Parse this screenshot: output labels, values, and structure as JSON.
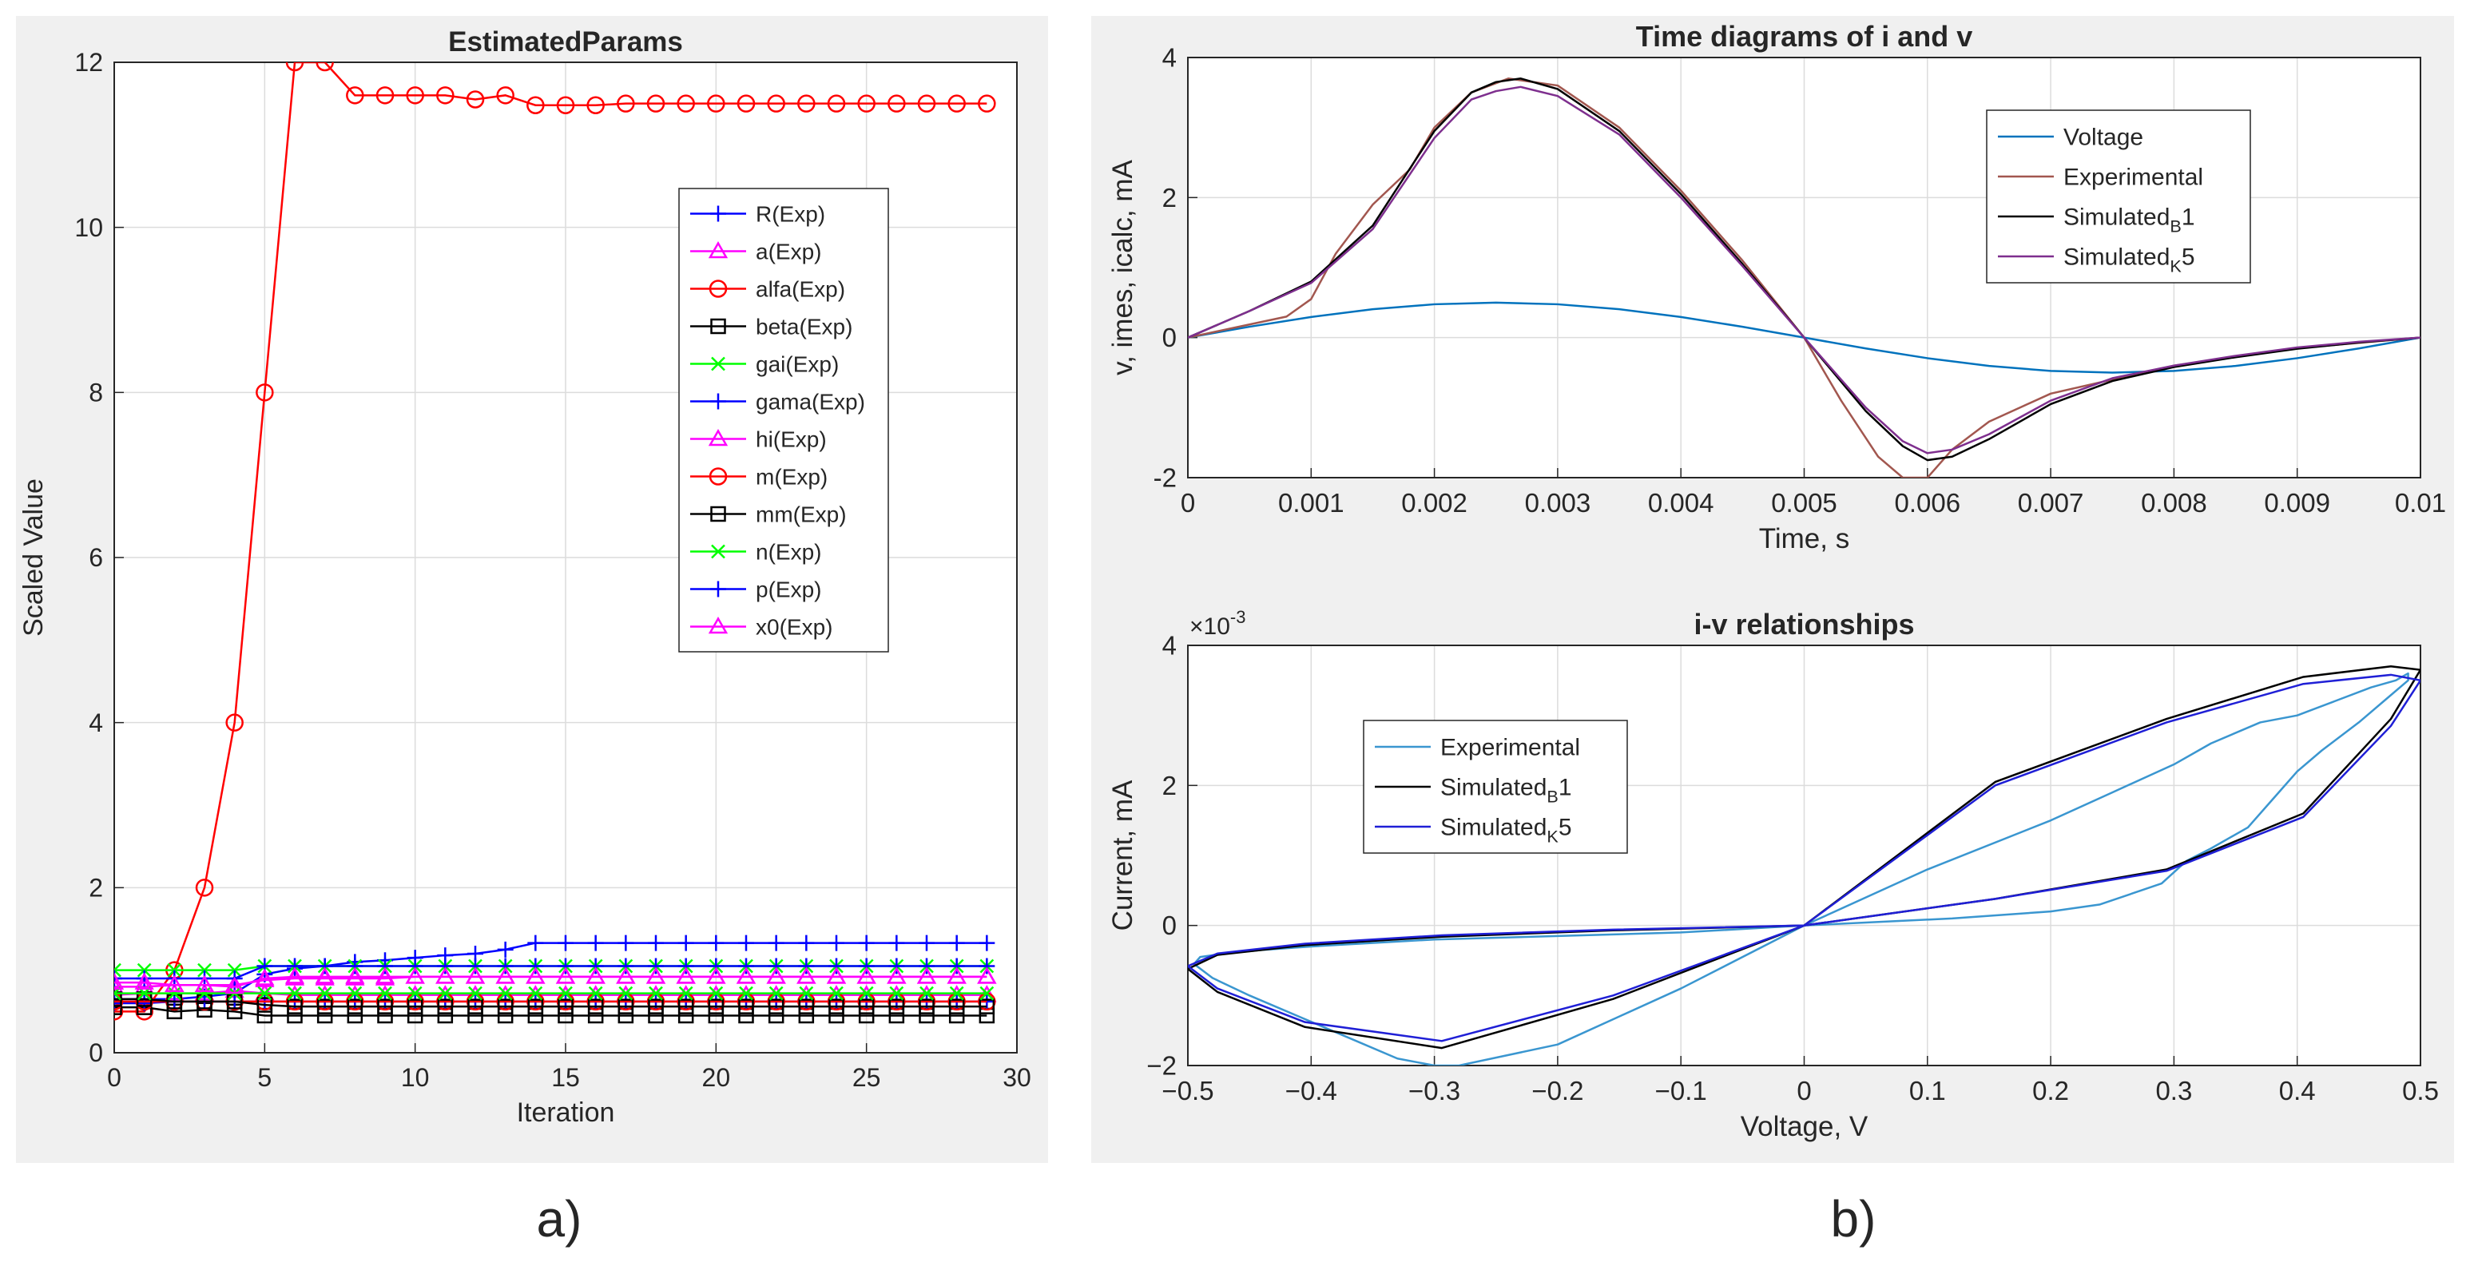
{
  "panel_labels": {
    "a": "a)",
    "b": "b)"
  },
  "chart_data": [
    {
      "id": "estimated-params",
      "type": "line",
      "title": "EstimatedParams",
      "xlabel": "Iteration",
      "ylabel": "Scaled Value",
      "xlim": [
        0,
        30
      ],
      "ylim": [
        0,
        12
      ],
      "xticks": [
        0,
        5,
        10,
        15,
        20,
        25,
        30
      ],
      "yticks": [
        0,
        2,
        4,
        6,
        8,
        10,
        12
      ],
      "grid": true,
      "legend_position": "upper-right",
      "x": [
        0,
        1,
        2,
        3,
        4,
        5,
        6,
        7,
        8,
        9,
        10,
        11,
        12,
        13,
        14,
        15,
        16,
        17,
        18,
        19,
        20,
        21,
        22,
        23,
        24,
        25,
        26,
        27,
        28,
        29
      ],
      "series": [
        {
          "name": "R(Exp)",
          "color": "#0000ff",
          "marker": "plus",
          "values": [
            0.65,
            0.65,
            0.65,
            0.68,
            0.72,
            0.95,
            1.02,
            1.05,
            1.1,
            1.12,
            1.15,
            1.18,
            1.2,
            1.25,
            1.33,
            1.33,
            1.33,
            1.33,
            1.33,
            1.33,
            1.33,
            1.33,
            1.33,
            1.33,
            1.33,
            1.33,
            1.33,
            1.33,
            1.33,
            1.33
          ]
        },
        {
          "name": "a(Exp)",
          "color": "#ff00ff",
          "marker": "triangle",
          "values": [
            0.7,
            0.72,
            0.72,
            0.72,
            0.75,
            0.72,
            0.7,
            0.7,
            0.7,
            0.7,
            0.7,
            0.7,
            0.7,
            0.7,
            0.7,
            0.7,
            0.7,
            0.7,
            0.7,
            0.7,
            0.7,
            0.7,
            0.7,
            0.7,
            0.7,
            0.7,
            0.7,
            0.7,
            0.7,
            0.7
          ]
        },
        {
          "name": "alfa(Exp)",
          "color": "#ff0000",
          "marker": "circle",
          "values": [
            0.5,
            0.5,
            1,
            2,
            4,
            8,
            12,
            12,
            11.6,
            11.6,
            11.6,
            11.6,
            11.55,
            11.6,
            11.48,
            11.48,
            11.48,
            11.5,
            11.5,
            11.5,
            11.5,
            11.5,
            11.5,
            11.5,
            11.5,
            11.5,
            11.5,
            11.5,
            11.5,
            11.5
          ]
        },
        {
          "name": "beta(Exp)",
          "color": "#000000",
          "marker": "square",
          "values": [
            0.55,
            0.55,
            0.5,
            0.52,
            0.5,
            0.45,
            0.45,
            0.45,
            0.45,
            0.45,
            0.45,
            0.45,
            0.45,
            0.45,
            0.45,
            0.45,
            0.45,
            0.45,
            0.45,
            0.45,
            0.45,
            0.45,
            0.45,
            0.45,
            0.45,
            0.45,
            0.45,
            0.45,
            0.45,
            0.45
          ]
        },
        {
          "name": "gai(Exp)",
          "color": "#00ff00",
          "marker": "x",
          "values": [
            1,
            1,
            1,
            1,
            1,
            1.05,
            1.05,
            1.05,
            1.05,
            1.05,
            1.05,
            1.05,
            1.05,
            1.05,
            1.05,
            1.05,
            1.05,
            1.05,
            1.05,
            1.05,
            1.05,
            1.05,
            1.05,
            1.05,
            1.05,
            1.05,
            1.05,
            1.05,
            1.05,
            1.05
          ]
        },
        {
          "name": "gama(Exp)",
          "color": "#0000ff",
          "marker": "plus",
          "values": [
            0.6,
            0.6,
            0.62,
            0.62,
            0.62,
            0.62,
            0.62,
            0.62,
            0.62,
            0.62,
            0.62,
            0.62,
            0.62,
            0.62,
            0.62,
            0.62,
            0.62,
            0.62,
            0.62,
            0.62,
            0.62,
            0.62,
            0.62,
            0.62,
            0.62,
            0.62,
            0.62,
            0.62,
            0.62,
            0.62
          ]
        },
        {
          "name": "hi(Exp)",
          "color": "#ff00ff",
          "marker": "triangle",
          "values": [
            0.8,
            0.8,
            0.82,
            0.82,
            0.82,
            0.88,
            0.9,
            0.9,
            0.9,
            0.9,
            0.92,
            0.92,
            0.92,
            0.92,
            0.92,
            0.92,
            0.92,
            0.92,
            0.92,
            0.92,
            0.92,
            0.92,
            0.92,
            0.92,
            0.92,
            0.92,
            0.92,
            0.92,
            0.92,
            0.92
          ]
        },
        {
          "name": "m(Exp)",
          "color": "#ff0000",
          "marker": "circle",
          "values": [
            0.62,
            0.62,
            0.62,
            0.62,
            0.62,
            0.62,
            0.62,
            0.62,
            0.62,
            0.62,
            0.62,
            0.62,
            0.62,
            0.62,
            0.62,
            0.62,
            0.62,
            0.62,
            0.62,
            0.62,
            0.62,
            0.62,
            0.62,
            0.62,
            0.62,
            0.62,
            0.62,
            0.62,
            0.62,
            0.62
          ]
        },
        {
          "name": "mm(Exp)",
          "color": "#000000",
          "marker": "square",
          "values": [
            0.65,
            0.65,
            0.62,
            0.62,
            0.62,
            0.58,
            0.56,
            0.56,
            0.56,
            0.56,
            0.56,
            0.56,
            0.56,
            0.56,
            0.56,
            0.56,
            0.56,
            0.56,
            0.56,
            0.56,
            0.56,
            0.56,
            0.56,
            0.56,
            0.56,
            0.56,
            0.56,
            0.56,
            0.56,
            0.56
          ]
        },
        {
          "name": "n(Exp)",
          "color": "#00ff00",
          "marker": "x",
          "values": [
            0.72,
            0.72,
            0.72,
            0.72,
            0.72,
            0.72,
            0.72,
            0.72,
            0.72,
            0.72,
            0.72,
            0.72,
            0.72,
            0.72,
            0.72,
            0.72,
            0.72,
            0.72,
            0.72,
            0.72,
            0.72,
            0.72,
            0.72,
            0.72,
            0.72,
            0.72,
            0.72,
            0.72,
            0.72,
            0.72
          ]
        },
        {
          "name": "p(Exp)",
          "color": "#0000ff",
          "marker": "plus",
          "values": [
            0.9,
            0.9,
            0.9,
            0.9,
            0.9,
            1.05,
            1.05,
            1.05,
            1.05,
            1.05,
            1.05,
            1.05,
            1.05,
            1.05,
            1.05,
            1.05,
            1.05,
            1.05,
            1.05,
            1.05,
            1.05,
            1.05,
            1.05,
            1.05,
            1.05,
            1.05,
            1.05,
            1.05,
            1.05,
            1.05
          ]
        },
        {
          "name": "x0(Exp)",
          "color": "#ff00ff",
          "marker": "triangle",
          "values": [
            0.85,
            0.85,
            0.82,
            0.82,
            0.8,
            0.9,
            0.92,
            0.92,
            0.92,
            0.92,
            0.92,
            0.92,
            0.92,
            0.92,
            0.92,
            0.92,
            0.92,
            0.92,
            0.92,
            0.92,
            0.92,
            0.92,
            0.92,
            0.92,
            0.92,
            0.92,
            0.92,
            0.92,
            0.92,
            0.92
          ]
        }
      ]
    },
    {
      "id": "time-diagrams",
      "type": "line",
      "title": "Time diagrams of i and v",
      "xlabel": "Time, s",
      "ylabel": "v, imes, icalc, mA",
      "xlim": [
        0,
        0.01
      ],
      "ylim": [
        -2,
        4
      ],
      "xticks": [
        0,
        0.001,
        0.002,
        0.003,
        0.004,
        0.005,
        0.006,
        0.007,
        0.008,
        0.009,
        0.01
      ],
      "xtick_labels": [
        "0",
        "0.001",
        "0.002",
        "0.003",
        "0.004",
        "0.005",
        "0.006",
        "0.007",
        "0.008",
        "0.009",
        "0.01"
      ],
      "yticks": [
        -2,
        0,
        2,
        4
      ],
      "grid": true,
      "legend_position": "upper-right",
      "series": [
        {
          "name": "Voltage",
          "legend_text": "Voltage",
          "color": "#0072bd",
          "x": [
            0,
            0.0005,
            0.001,
            0.0015,
            0.002,
            0.0025,
            0.003,
            0.0035,
            0.004,
            0.0045,
            0.005,
            0.0055,
            0.006,
            0.0065,
            0.007,
            0.0075,
            0.008,
            0.0085,
            0.009,
            0.0095,
            0.01
          ],
          "y": [
            0,
            0.155,
            0.294,
            0.405,
            0.476,
            0.5,
            0.476,
            0.405,
            0.294,
            0.155,
            0,
            -0.155,
            -0.294,
            -0.405,
            -0.476,
            -0.5,
            -0.476,
            -0.405,
            -0.294,
            -0.155,
            0
          ]
        },
        {
          "name": "Experimental",
          "legend_text": "Experimental",
          "color": "#a2574f",
          "x": [
            0,
            0.0004,
            0.0008,
            0.001,
            0.0012,
            0.0015,
            0.0018,
            0.002,
            0.0023,
            0.0026,
            0.003,
            0.0035,
            0.004,
            0.0045,
            0.005,
            0.0053,
            0.0056,
            0.0058,
            0.006,
            0.0062,
            0.0065,
            0.007,
            0.0075,
            0.008,
            0.009,
            0.01
          ],
          "y": [
            0,
            0.15,
            0.3,
            0.55,
            1.2,
            1.9,
            2.4,
            3.0,
            3.5,
            3.7,
            3.6,
            3.0,
            2.1,
            1.1,
            0,
            -0.9,
            -1.7,
            -2.0,
            -2.0,
            -1.6,
            -1.2,
            -0.8,
            -0.6,
            -0.4,
            -0.15,
            0
          ]
        },
        {
          "name": "Simulated_B1",
          "legend_text": "Simulated",
          "legend_sub": "B",
          "legend_suffix": "1",
          "color": "#000000",
          "x": [
            0,
            0.0005,
            0.001,
            0.0015,
            0.002,
            0.0023,
            0.0025,
            0.0027,
            0.003,
            0.0035,
            0.004,
            0.0045,
            0.005,
            0.0055,
            0.0058,
            0.006,
            0.0062,
            0.0065,
            0.007,
            0.0075,
            0.008,
            0.0085,
            0.009,
            0.0095,
            0.01
          ],
          "y": [
            0,
            0.38,
            0.8,
            1.6,
            2.95,
            3.5,
            3.65,
            3.7,
            3.55,
            2.95,
            2.05,
            1.05,
            0,
            -1.05,
            -1.55,
            -1.75,
            -1.7,
            -1.45,
            -0.95,
            -0.62,
            -0.42,
            -0.28,
            -0.16,
            -0.07,
            0
          ]
        },
        {
          "name": "Simulated_K5",
          "legend_text": "Simulated",
          "legend_sub": "K",
          "legend_suffix": "5",
          "color": "#7e2f8e",
          "x": [
            0,
            0.0005,
            0.001,
            0.0015,
            0.002,
            0.0023,
            0.0025,
            0.0027,
            0.003,
            0.0035,
            0.004,
            0.0045,
            0.005,
            0.0055,
            0.0058,
            0.006,
            0.0062,
            0.0065,
            0.007,
            0.0075,
            0.008,
            0.0085,
            0.009,
            0.0095,
            0.01
          ],
          "y": [
            0,
            0.38,
            0.78,
            1.55,
            2.85,
            3.4,
            3.52,
            3.58,
            3.45,
            2.9,
            2.0,
            1.02,
            0,
            -1.0,
            -1.48,
            -1.65,
            -1.6,
            -1.38,
            -0.9,
            -0.58,
            -0.4,
            -0.26,
            -0.14,
            -0.06,
            0
          ]
        }
      ]
    },
    {
      "id": "iv-relationships",
      "type": "line",
      "title": "i-v relationships",
      "xlabel": "Voltage, V",
      "ylabel": "Current, mA",
      "y_exponent_label": "×10",
      "y_exponent_power": "-3",
      "xlim": [
        -0.5,
        0.5
      ],
      "ylim": [
        -0.002,
        0.004
      ],
      "xticks": [
        -0.5,
        -0.4,
        -0.3,
        -0.2,
        -0.1,
        0,
        0.1,
        0.2,
        0.3,
        0.4,
        0.5
      ],
      "xtick_labels": [
        "−0.5",
        "−0.4",
        "−0.3",
        "−0.2",
        "−0.1",
        "0",
        "0.1",
        "0.2",
        "0.3",
        "0.4",
        "0.5"
      ],
      "yticks": [
        -0.002,
        0,
        0.002,
        0.004
      ],
      "ytick_labels": [
        "−2",
        "0",
        "2",
        "4"
      ],
      "grid": true,
      "legend_position": "upper-left",
      "series": [
        {
          "name": "Experimental",
          "legend_text": "Experimental",
          "color": "#3a96d0",
          "x": [
            0,
            0.12,
            0.2,
            0.24,
            0.29,
            0.31,
            0.33,
            0.36,
            0.38,
            0.4,
            0.42,
            0.45,
            0.47,
            0.49,
            0.49,
            0.48,
            0.46,
            0.43,
            0.4,
            0.37,
            0.33,
            0.3,
            0.25,
            0.2,
            0.1,
            0,
            -0.1,
            -0.2,
            -0.28,
            -0.3,
            -0.33,
            -0.37,
            -0.41,
            -0.45,
            -0.48,
            -0.495,
            -0.49,
            -0.47,
            -0.44,
            -0.4,
            -0.3,
            -0.2,
            -0.1,
            0
          ],
          "y": [
            0,
            0.0001,
            0.0002,
            0.0003,
            0.0006,
            0.00092,
            0.0011,
            0.0014,
            0.0018,
            0.0022,
            0.0025,
            0.0029,
            0.0032,
            0.0035,
            0.0036,
            0.0035,
            0.0034,
            0.0032,
            0.003,
            0.0029,
            0.0026,
            0.0023,
            0.0019,
            0.0015,
            0.0008,
            0,
            -0.0009,
            -0.0017,
            -0.002,
            -0.002,
            -0.0019,
            -0.0016,
            -0.0013,
            -0.001,
            -0.00075,
            -0.00055,
            -0.00045,
            -0.0004,
            -0.00035,
            -0.0003,
            -0.0002,
            -0.00015,
            -0.0001,
            0
          ]
        },
        {
          "name": "Simulated_B1",
          "legend_text": "Simulated",
          "legend_sub": "B",
          "legend_suffix": "1",
          "color": "#000000",
          "x": [
            0,
            0.155,
            0.294,
            0.405,
            0.476,
            0.5,
            0.476,
            0.405,
            0.294,
            0.155,
            0,
            -0.155,
            -0.294,
            -0.405,
            -0.476,
            -0.5,
            -0.476,
            -0.405,
            -0.294,
            -0.155,
            0
          ],
          "y": [
            0,
            0.00038,
            0.0008,
            0.0016,
            0.00295,
            0.00365,
            0.0037,
            0.00355,
            0.00295,
            0.00205,
            0,
            -0.00105,
            -0.00175,
            -0.00145,
            -0.00095,
            -0.00062,
            -0.00042,
            -0.00028,
            -0.00016,
            -7e-05,
            0
          ]
        },
        {
          "name": "Simulated_K5",
          "legend_text": "Simulated",
          "legend_sub": "K",
          "legend_suffix": "5",
          "color": "#1f1fd6",
          "x": [
            0,
            0.155,
            0.294,
            0.405,
            0.476,
            0.5,
            0.476,
            0.405,
            0.294,
            0.155,
            0,
            -0.155,
            -0.294,
            -0.405,
            -0.476,
            -0.5,
            -0.476,
            -0.405,
            -0.294,
            -0.155,
            0
          ],
          "y": [
            0,
            0.00038,
            0.00078,
            0.00155,
            0.00285,
            0.0035,
            0.00358,
            0.00345,
            0.0029,
            0.002,
            0,
            -0.001,
            -0.00165,
            -0.00138,
            -0.0009,
            -0.00058,
            -0.0004,
            -0.00026,
            -0.00014,
            -6e-05,
            0
          ]
        }
      ]
    }
  ]
}
